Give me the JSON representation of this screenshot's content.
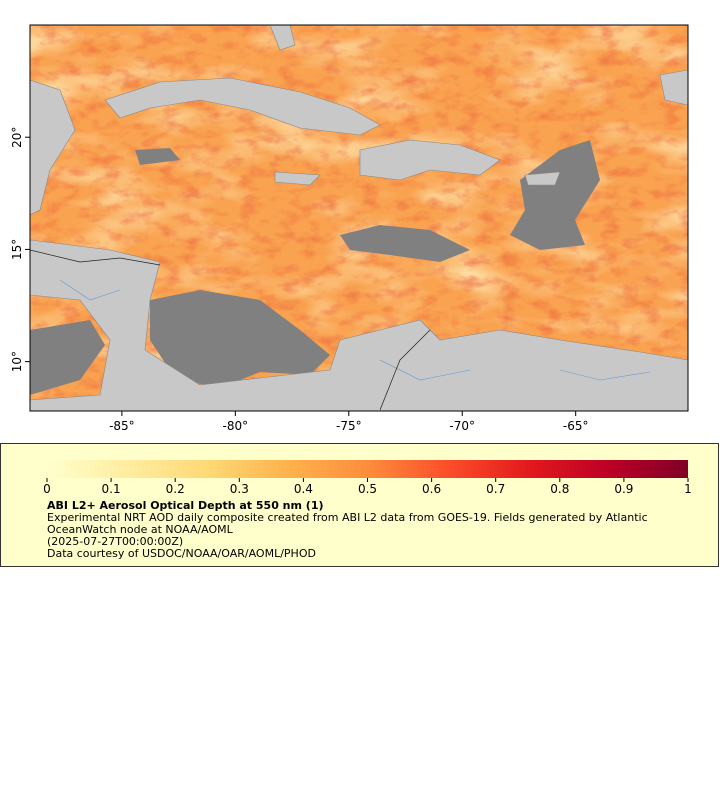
{
  "map": {
    "xlim": [
      -89.05,
      -60.05
    ],
    "ylim": [
      7.8,
      25.0
    ],
    "xticks": [
      {
        "value": -85,
        "label": "-85°"
      },
      {
        "value": -80,
        "label": "-80°"
      },
      {
        "value": -75,
        "label": "-75°"
      },
      {
        "value": -70,
        "label": "-70°"
      },
      {
        "value": -65,
        "label": "-65°"
      }
    ],
    "yticks": [
      {
        "value": 10,
        "label": "10°"
      },
      {
        "value": 15,
        "label": "15°"
      },
      {
        "value": 20,
        "label": "20°"
      }
    ]
  },
  "colorbar": {
    "range": [
      0,
      1
    ],
    "ticks": [
      0,
      0.1,
      0.2,
      0.3,
      0.4,
      0.5,
      0.6,
      0.7,
      0.8,
      0.9,
      1
    ]
  },
  "legend": {
    "title": "ABI L2+ Aerosol Optical Depth at 550 nm (1)",
    "description": "Experimental NRT AOD daily composite created from ABI L2 data from GOES-19. Fields generated by Atlantic OceanWatch node at NOAA/AOML",
    "time": "(2025-07-27T00:00:00Z)",
    "credit": "Data courtesy of USDOC/NOAA/OAR/AOML/PHOD"
  }
}
